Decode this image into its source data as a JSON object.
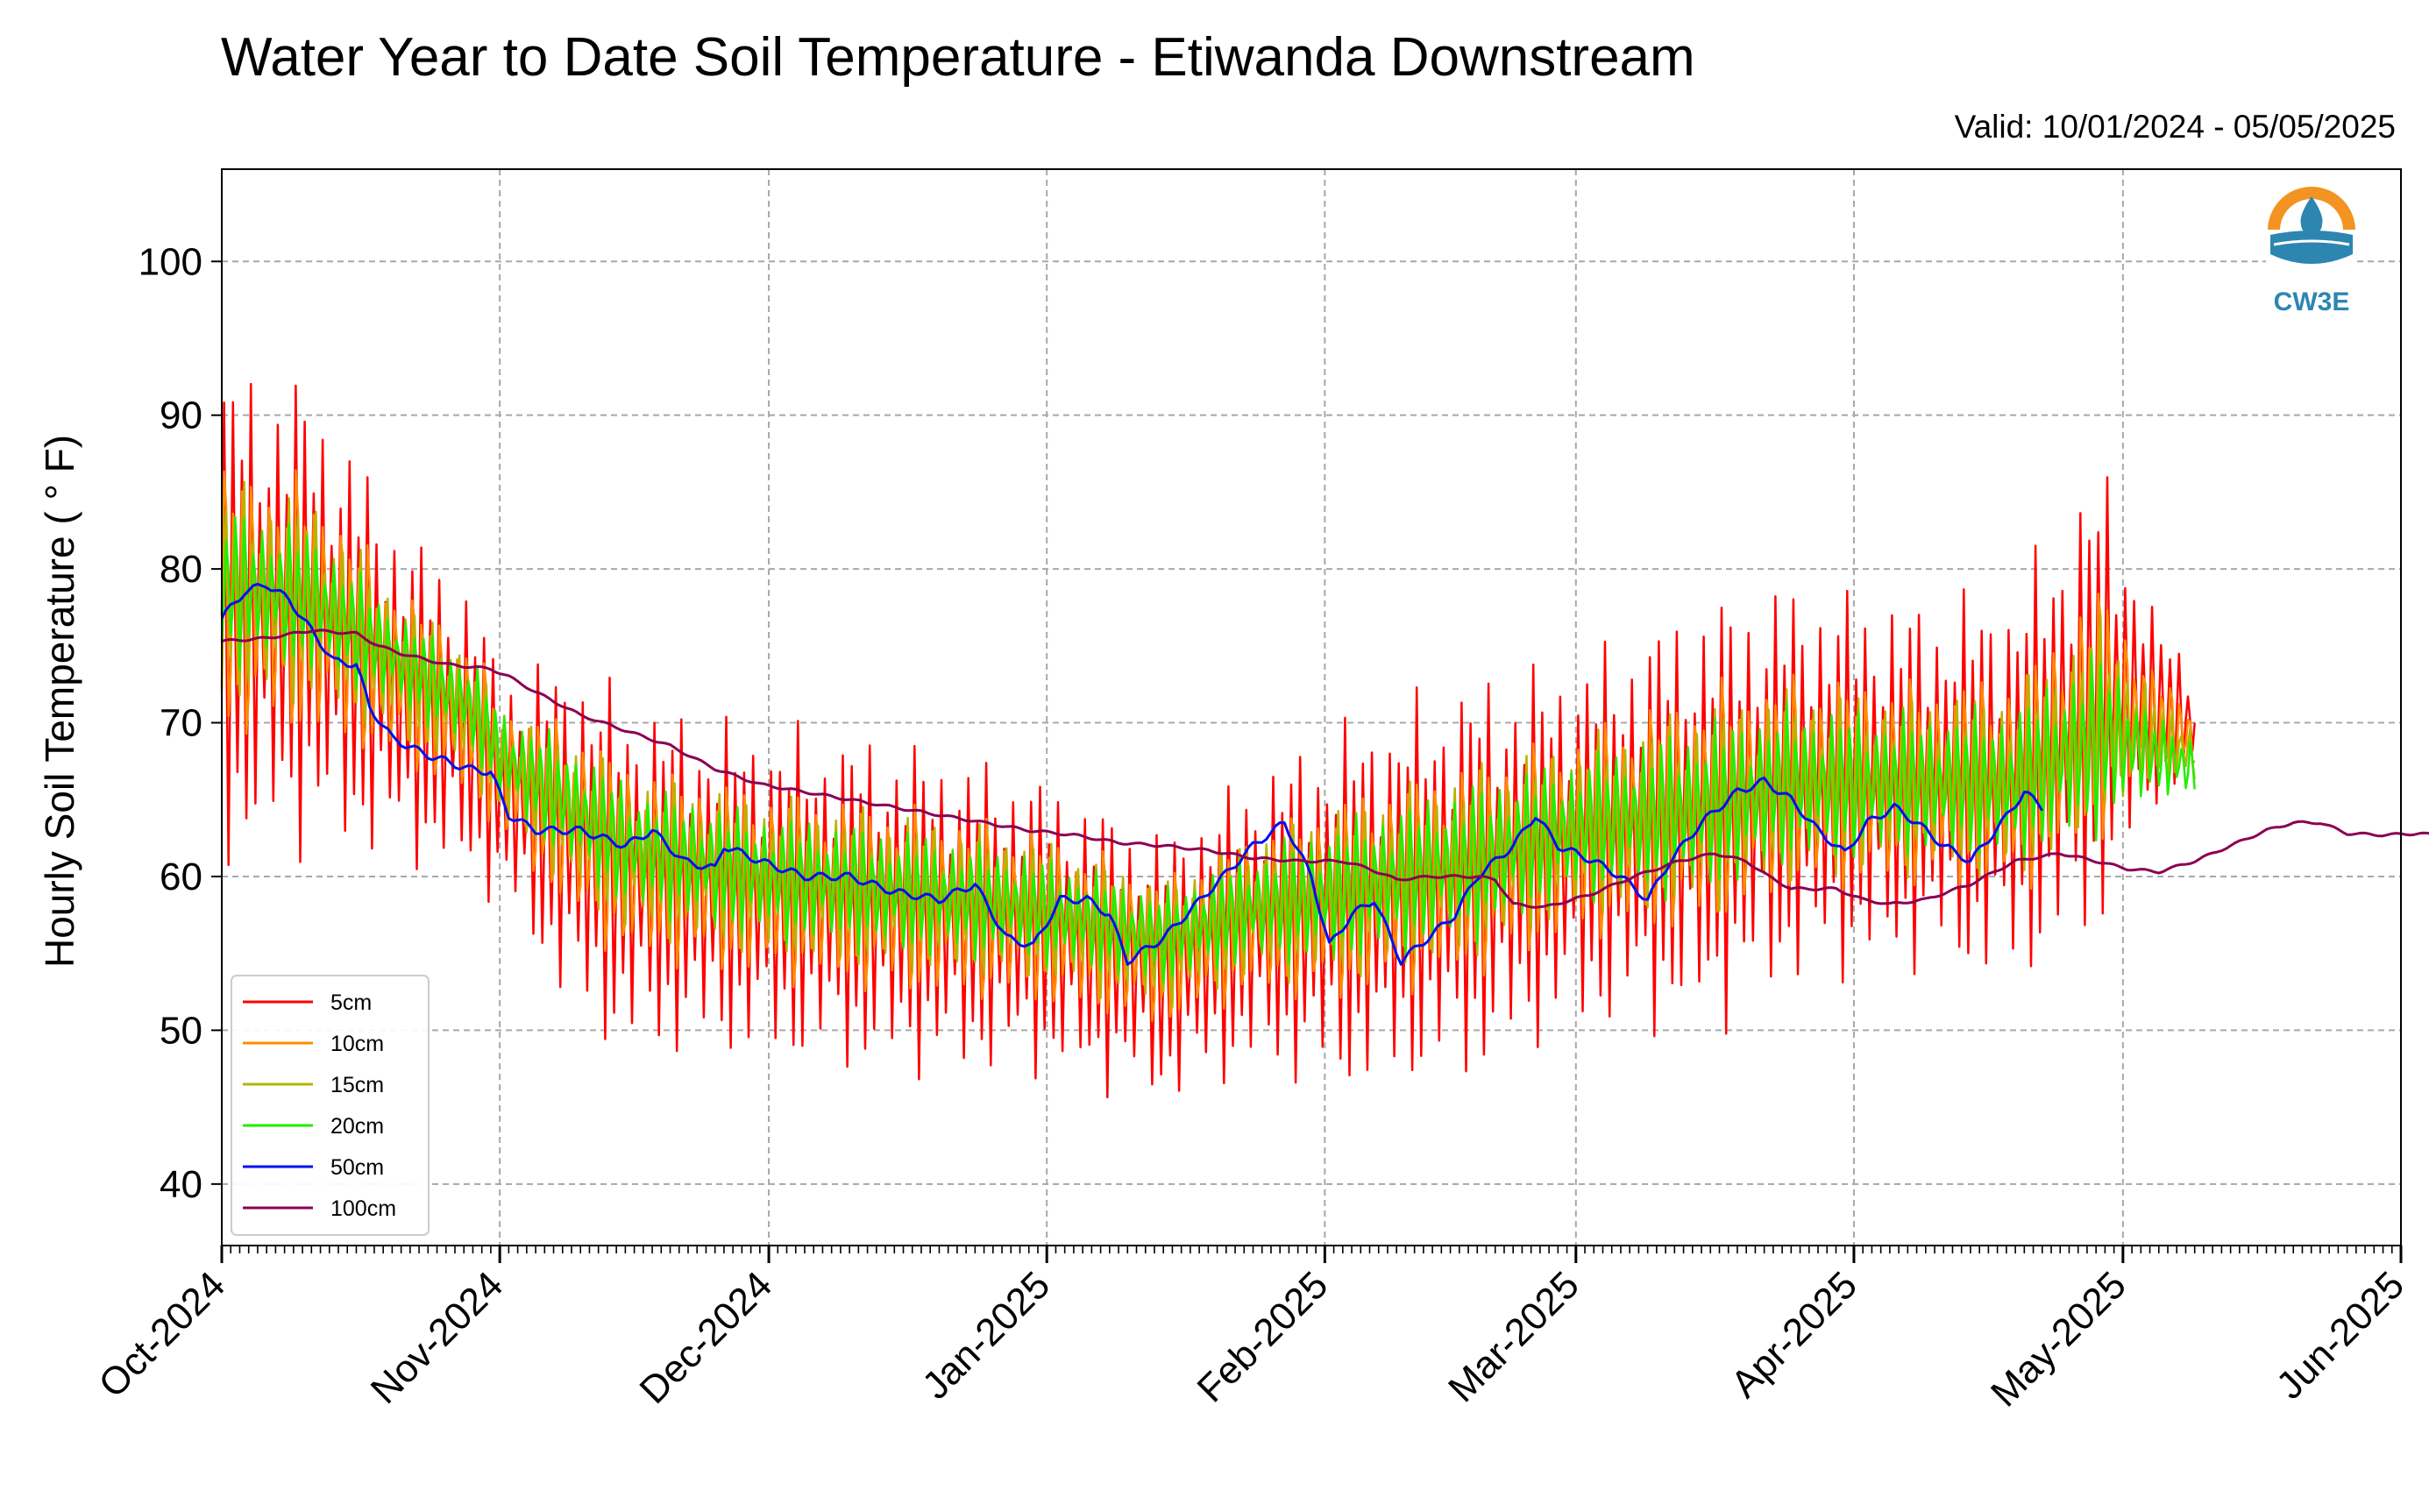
{
  "chart_data": {
    "type": "line",
    "title": "Water Year to Date Soil Temperature - Etiwanda Downstream",
    "subtitle": "Valid: 10/01/2024 - 05/05/2025",
    "ylabel": "Hourly Soil Temperature ( ° F)",
    "xlabel": "",
    "ylim": [
      36,
      106
    ],
    "xlim": [
      "2024-10-01",
      "2025-06-01"
    ],
    "y_ticks": [
      40,
      50,
      60,
      70,
      80,
      90,
      100
    ],
    "x_ticks": [
      "Oct-2024",
      "Nov-2024",
      "Dec-2024",
      "Jan-2025",
      "Feb-2025",
      "Mar-2025",
      "Apr-2025",
      "May-2025",
      "Jun-2025"
    ],
    "x_tick_dates": [
      "2024-10-01",
      "2024-11-01",
      "2024-12-01",
      "2025-01-01",
      "2025-02-01",
      "2025-03-01",
      "2025-04-01",
      "2025-05-01",
      "2025-06-01"
    ],
    "grid": true,
    "legend_position": "lower-left",
    "logo": "CW3E",
    "series": [
      {
        "name": "5cm",
        "color": "#ff0000",
        "mean": [
          [
            0,
            77
          ],
          [
            10,
            77
          ],
          [
            20,
            72
          ],
          [
            28,
            69
          ],
          [
            31,
            66
          ],
          [
            45,
            60
          ],
          [
            60,
            59
          ],
          [
            75,
            58
          ],
          [
            90,
            57
          ],
          [
            105,
            54
          ],
          [
            115,
            57
          ],
          [
            125,
            58
          ],
          [
            140,
            60
          ],
          [
            150,
            62
          ],
          [
            166,
            64
          ],
          [
            175,
            66
          ],
          [
            190,
            66
          ],
          [
            200,
            66
          ],
          [
            210,
            72
          ],
          [
            215,
            71
          ],
          [
            220,
            70
          ]
        ],
        "amplitude": [
          [
            0,
            15
          ],
          [
            10,
            14
          ],
          [
            20,
            10
          ],
          [
            28,
            9
          ],
          [
            31,
            7
          ],
          [
            40,
            11
          ],
          [
            55,
            10
          ],
          [
            75,
            10
          ],
          [
            90,
            9
          ],
          [
            105,
            8
          ],
          [
            115,
            9
          ],
          [
            125,
            11
          ],
          [
            140,
            12
          ],
          [
            150,
            11
          ],
          [
            166,
            13
          ],
          [
            175,
            12
          ],
          [
            190,
            11
          ],
          [
            200,
            12
          ],
          [
            210,
            14
          ],
          [
            215,
            6
          ],
          [
            220,
            4
          ]
        ]
      },
      {
        "name": "10cm",
        "color": "#ff8c00",
        "mean": [
          [
            0,
            78
          ],
          [
            10,
            77.5
          ],
          [
            20,
            73
          ],
          [
            28,
            70
          ],
          [
            31,
            67
          ],
          [
            45,
            61
          ],
          [
            60,
            59.5
          ],
          [
            75,
            58.5
          ],
          [
            90,
            57.5
          ],
          [
            105,
            55
          ],
          [
            115,
            57.5
          ],
          [
            125,
            58.5
          ],
          [
            140,
            60.5
          ],
          [
            150,
            62.5
          ],
          [
            166,
            64.5
          ],
          [
            175,
            66
          ],
          [
            190,
            66
          ],
          [
            200,
            66
          ],
          [
            210,
            71
          ],
          [
            215,
            70
          ],
          [
            220,
            69
          ]
        ],
        "amplitude": [
          [
            0,
            10
          ],
          [
            10,
            9.5
          ],
          [
            20,
            6.5
          ],
          [
            28,
            6
          ],
          [
            31,
            5
          ],
          [
            40,
            7.5
          ],
          [
            55,
            7
          ],
          [
            75,
            7
          ],
          [
            90,
            6.5
          ],
          [
            105,
            5.5
          ],
          [
            115,
            6
          ],
          [
            125,
            7.5
          ],
          [
            140,
            8
          ],
          [
            150,
            7.5
          ],
          [
            166,
            9
          ],
          [
            175,
            8
          ],
          [
            190,
            7.5
          ],
          [
            200,
            8
          ],
          [
            210,
            9.5
          ],
          [
            215,
            4
          ],
          [
            220,
            3
          ]
        ]
      },
      {
        "name": "15cm",
        "color": "#b5b500",
        "mean": [
          [
            0,
            78.5
          ],
          [
            10,
            78
          ],
          [
            20,
            73.5
          ],
          [
            28,
            70.5
          ],
          [
            31,
            67.5
          ],
          [
            45,
            61.5
          ],
          [
            60,
            60
          ],
          [
            75,
            59
          ],
          [
            90,
            58
          ],
          [
            105,
            55.5
          ],
          [
            115,
            58
          ],
          [
            125,
            59
          ],
          [
            140,
            61
          ],
          [
            150,
            63
          ],
          [
            166,
            64.5
          ],
          [
            175,
            66
          ],
          [
            190,
            66
          ],
          [
            200,
            66
          ],
          [
            210,
            70
          ],
          [
            215,
            69
          ],
          [
            220,
            68
          ]
        ],
        "amplitude": [
          [
            0,
            7
          ],
          [
            10,
            6.5
          ],
          [
            20,
            4.5
          ],
          [
            28,
            4
          ],
          [
            31,
            3.5
          ],
          [
            40,
            5
          ],
          [
            55,
            5
          ],
          [
            75,
            5
          ],
          [
            90,
            4.5
          ],
          [
            105,
            4
          ],
          [
            115,
            4.5
          ],
          [
            125,
            5.5
          ],
          [
            140,
            6
          ],
          [
            150,
            5.5
          ],
          [
            166,
            6.5
          ],
          [
            175,
            6
          ],
          [
            190,
            5.5
          ],
          [
            200,
            6
          ],
          [
            210,
            7
          ],
          [
            215,
            3
          ],
          [
            220,
            2
          ]
        ]
      },
      {
        "name": "20cm",
        "color": "#22ee00",
        "mean": [
          [
            0,
            79
          ],
          [
            10,
            78
          ],
          [
            20,
            74
          ],
          [
            28,
            71
          ],
          [
            31,
            68
          ],
          [
            45,
            62
          ],
          [
            60,
            60
          ],
          [
            75,
            59
          ],
          [
            90,
            58
          ],
          [
            105,
            56
          ],
          [
            115,
            58
          ],
          [
            125,
            59
          ],
          [
            140,
            61
          ],
          [
            150,
            63
          ],
          [
            166,
            64.5
          ],
          [
            175,
            66
          ],
          [
            190,
            66
          ],
          [
            200,
            66
          ],
          [
            210,
            69
          ],
          [
            215,
            68
          ],
          [
            220,
            67
          ]
        ],
        "amplitude": [
          [
            0,
            5
          ],
          [
            10,
            4.5
          ],
          [
            20,
            3
          ],
          [
            28,
            3
          ],
          [
            31,
            3
          ],
          [
            40,
            4
          ],
          [
            55,
            4
          ],
          [
            75,
            4
          ],
          [
            90,
            3.5
          ],
          [
            105,
            3
          ],
          [
            115,
            3.5
          ],
          [
            125,
            4.5
          ],
          [
            140,
            5
          ],
          [
            150,
            4.5
          ],
          [
            166,
            5.5
          ],
          [
            175,
            5
          ],
          [
            190,
            4.5
          ],
          [
            200,
            5
          ],
          [
            210,
            6
          ],
          [
            215,
            2.5
          ],
          [
            220,
            2
          ]
        ]
      },
      {
        "name": "50cm",
        "color": "#0010ee",
        "points": [
          [
            0,
            76.8
          ],
          [
            5,
            78.5
          ],
          [
            10,
            79
          ],
          [
            15,
            78
          ],
          [
            20,
            76
          ],
          [
            25,
            74
          ],
          [
            30,
            73.8
          ],
          [
            33,
            71
          ],
          [
            38,
            69
          ],
          [
            45,
            68
          ],
          [
            50,
            67.5
          ],
          [
            55,
            67
          ],
          [
            60,
            66.8
          ],
          [
            64,
            64
          ],
          [
            70,
            63
          ],
          [
            80,
            63
          ],
          [
            90,
            62
          ],
          [
            96,
            63
          ],
          [
            103,
            61
          ],
          [
            110,
            60.5
          ],
          [
            112,
            62
          ],
          [
            120,
            61
          ],
          [
            130,
            60
          ],
          [
            140,
            60
          ],
          [
            150,
            59
          ],
          [
            160,
            58.5
          ],
          [
            168,
            59.5
          ],
          [
            175,
            56
          ],
          [
            181,
            55.5
          ],
          [
            187,
            58.5
          ],
          [
            193,
            58.5
          ],
          [
            198,
            57.5
          ],
          [
            202,
            54.5
          ],
          [
            210,
            56
          ],
          [
            220,
            59
          ],
          [
            230,
            62
          ],
          [
            237,
            63.5
          ],
          [
            243,
            60
          ],
          [
            247,
            55.5
          ],
          [
            252,
            57.5
          ],
          [
            257,
            58.5
          ],
          [
            263,
            54.5
          ],
          [
            269,
            56
          ],
          [
            275,
            57.5
          ],
          [
            280,
            60
          ],
          [
            288,
            62
          ],
          [
            293,
            64
          ],
          [
            298,
            62
          ],
          [
            306,
            61
          ],
          [
            312,
            60
          ],
          [
            318,
            58.5
          ],
          [
            323,
            61
          ],
          [
            330,
            63.5
          ],
          [
            338,
            65.5
          ],
          [
            344,
            66.2
          ],
          [
            350,
            65
          ],
          [
            356,
            63
          ],
          [
            362,
            61.5
          ],
          [
            367,
            63.5
          ],
          [
            373,
            64.5
          ],
          [
            378,
            63.5
          ],
          [
            384,
            62
          ],
          [
            390,
            61
          ],
          [
            397,
            63.5
          ],
          [
            402,
            65.5
          ],
          [
            406,
            64.5
          ]
        ]
      },
      {
        "name": "100cm",
        "color": "#8b0052",
        "points": [
          [
            0,
            75.3
          ],
          [
            10,
            75.5
          ],
          [
            20,
            76
          ],
          [
            30,
            75.8
          ],
          [
            35,
            75
          ],
          [
            40,
            74.5
          ],
          [
            50,
            73.8
          ],
          [
            60,
            73.5
          ],
          [
            64,
            73
          ],
          [
            70,
            72
          ],
          [
            80,
            70.5
          ],
          [
            90,
            69.5
          ],
          [
            100,
            68.5
          ],
          [
            110,
            67
          ],
          [
            120,
            66
          ],
          [
            130,
            65.5
          ],
          [
            140,
            65
          ],
          [
            150,
            64.5
          ],
          [
            160,
            64
          ],
          [
            170,
            63.5
          ],
          [
            180,
            63
          ],
          [
            190,
            62.7
          ],
          [
            200,
            62.2
          ],
          [
            210,
            62
          ],
          [
            220,
            61.7
          ],
          [
            230,
            61.2
          ],
          [
            240,
            61
          ],
          [
            250,
            61
          ],
          [
            256,
            60.5
          ],
          [
            262,
            59.8
          ],
          [
            270,
            60
          ],
          [
            280,
            60
          ],
          [
            284,
            59.8
          ],
          [
            288,
            58.2
          ],
          [
            295,
            58
          ],
          [
            305,
            58.8
          ],
          [
            315,
            60
          ],
          [
            325,
            61
          ],
          [
            333,
            61.5
          ],
          [
            340,
            61
          ],
          [
            345,
            60
          ],
          [
            350,
            59.2
          ],
          [
            360,
            59.2
          ],
          [
            366,
            58.5
          ],
          [
            372,
            58.2
          ],
          [
            380,
            58.5
          ],
          [
            390,
            59.5
          ],
          [
            400,
            61
          ],
          [
            410,
            61.5
          ],
          [
            418,
            61
          ],
          [
            425,
            60.5
          ],
          [
            432,
            60.3
          ],
          [
            440,
            61
          ],
          [
            448,
            62
          ],
          [
            456,
            63
          ],
          [
            462,
            63.5
          ],
          [
            468,
            63.5
          ],
          [
            474,
            62.8
          ],
          [
            482,
            62.7
          ],
          [
            490,
            62.8
          ],
          [
            497,
            62.6
          ],
          [
            503,
            63
          ],
          [
            510,
            63.1
          ]
        ]
      }
    ]
  }
}
